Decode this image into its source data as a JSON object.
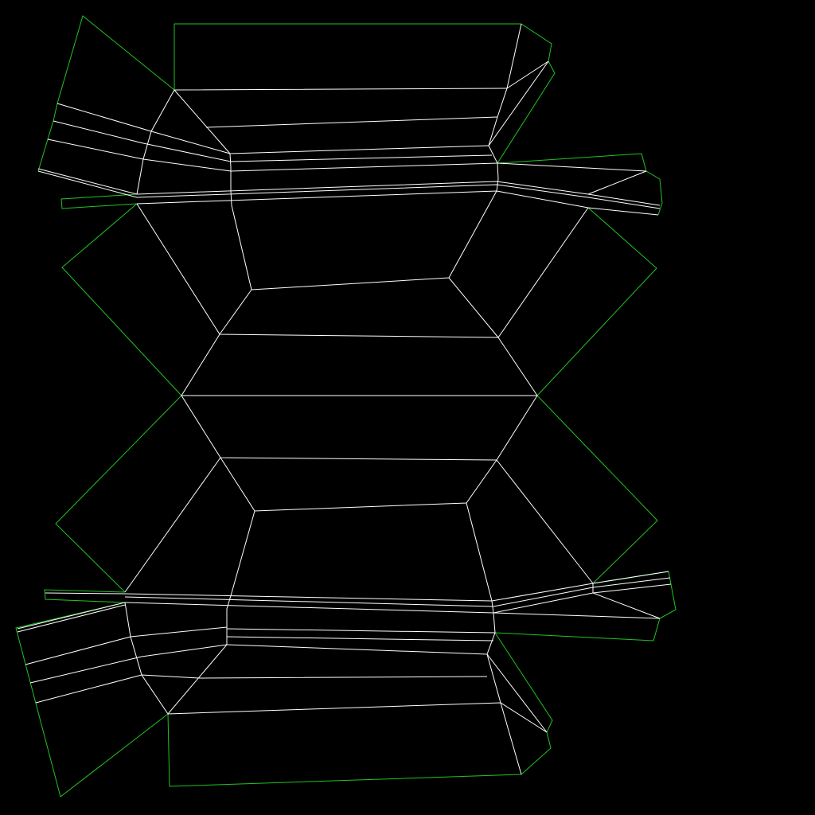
{
  "view": {
    "background": "#000000",
    "seam_color": "#22c322",
    "edge_color": "#ffffff"
  }
}
